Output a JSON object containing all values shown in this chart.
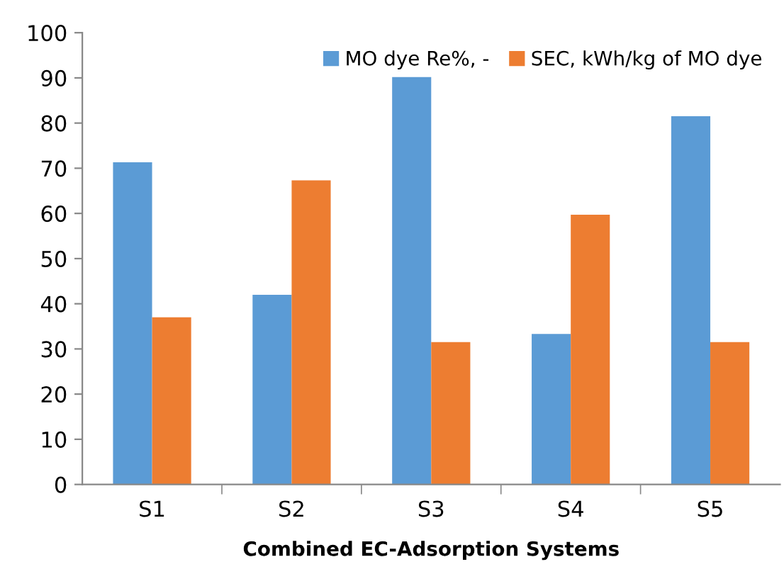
{
  "chart_data": {
    "type": "bar",
    "xlabel": "Combined EC-Adsorption Systems",
    "categories": [
      "S1",
      "S2",
      "S3",
      "S4",
      "S5"
    ],
    "series": [
      {
        "name": "MO dye Re%, -",
        "color": "#5b9bd5",
        "values": [
          71.3,
          42,
          90.2,
          33.3,
          81.5
        ]
      },
      {
        "name": "SEC, kWh/kg of MO dye",
        "color": "#ed7d31",
        "values": [
          37,
          67.3,
          31.5,
          59.7,
          31.5
        ]
      }
    ],
    "ylim": [
      0,
      100
    ],
    "yticks": [
      0,
      10,
      20,
      30,
      40,
      50,
      60,
      70,
      80,
      90,
      100
    ],
    "grid": false,
    "legend": "top right"
  }
}
